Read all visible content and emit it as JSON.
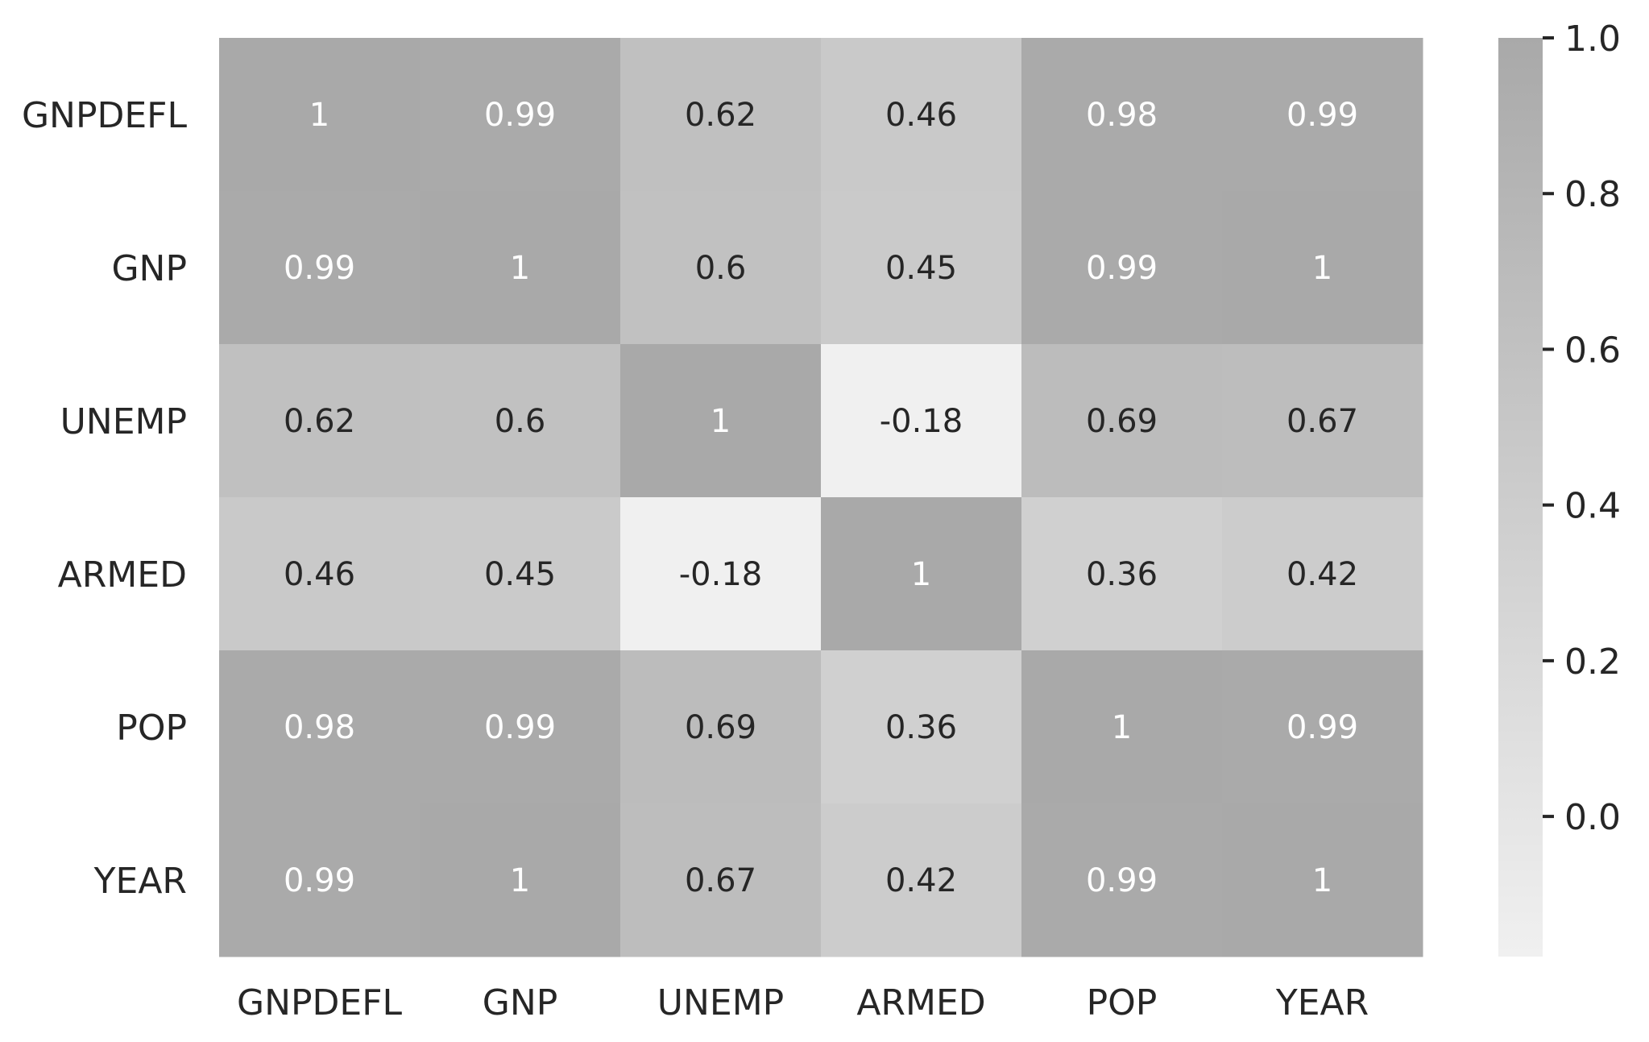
{
  "chart_data": {
    "type": "heatmap",
    "title": "",
    "xlabel": "",
    "ylabel": "",
    "x_labels": [
      "GNPDEFL",
      "GNP",
      "UNEMP",
      "ARMED",
      "POP",
      "YEAR"
    ],
    "y_labels": [
      "GNPDEFL",
      "GNP",
      "UNEMP",
      "ARMED",
      "POP",
      "YEAR"
    ],
    "values": [
      [
        1,
        0.99,
        0.62,
        0.46,
        0.98,
        0.99
      ],
      [
        0.99,
        1,
        0.6,
        0.45,
        0.99,
        1
      ],
      [
        0.62,
        0.6,
        1,
        -0.18,
        0.69,
        0.67
      ],
      [
        0.46,
        0.45,
        -0.18,
        1,
        0.36,
        0.42
      ],
      [
        0.98,
        0.99,
        0.69,
        0.36,
        1,
        0.99
      ],
      [
        0.99,
        1,
        0.67,
        0.42,
        0.99,
        1
      ]
    ],
    "annotations": [
      [
        "1",
        "0.99",
        "0.62",
        "0.46",
        "0.98",
        "0.99"
      ],
      [
        "0.99",
        "1",
        "0.6",
        "0.45",
        "0.99",
        "1"
      ],
      [
        "0.62",
        "0.6",
        "1",
        "-0.18",
        "0.69",
        "0.67"
      ],
      [
        "0.46",
        "0.45",
        "-0.18",
        "1",
        "0.36",
        "0.42"
      ],
      [
        "0.98",
        "0.99",
        "0.69",
        "0.36",
        "1",
        "0.99"
      ],
      [
        "0.99",
        "1",
        "0.67",
        "0.42",
        "0.99",
        "1"
      ]
    ],
    "colorbar": {
      "vmin": -0.18,
      "vmax": 1.0,
      "ticks": [
        0.0,
        0.2,
        0.4,
        0.6,
        0.8,
        1.0
      ],
      "tick_labels": [
        "0.0",
        "0.2",
        "0.4",
        "0.6",
        "0.8",
        "1.0"
      ],
      "color_low": "#f0f0f0",
      "color_high": "#a9a9a9"
    },
    "text_color_dark": "#262626",
    "text_color_light": "#ffffff"
  }
}
